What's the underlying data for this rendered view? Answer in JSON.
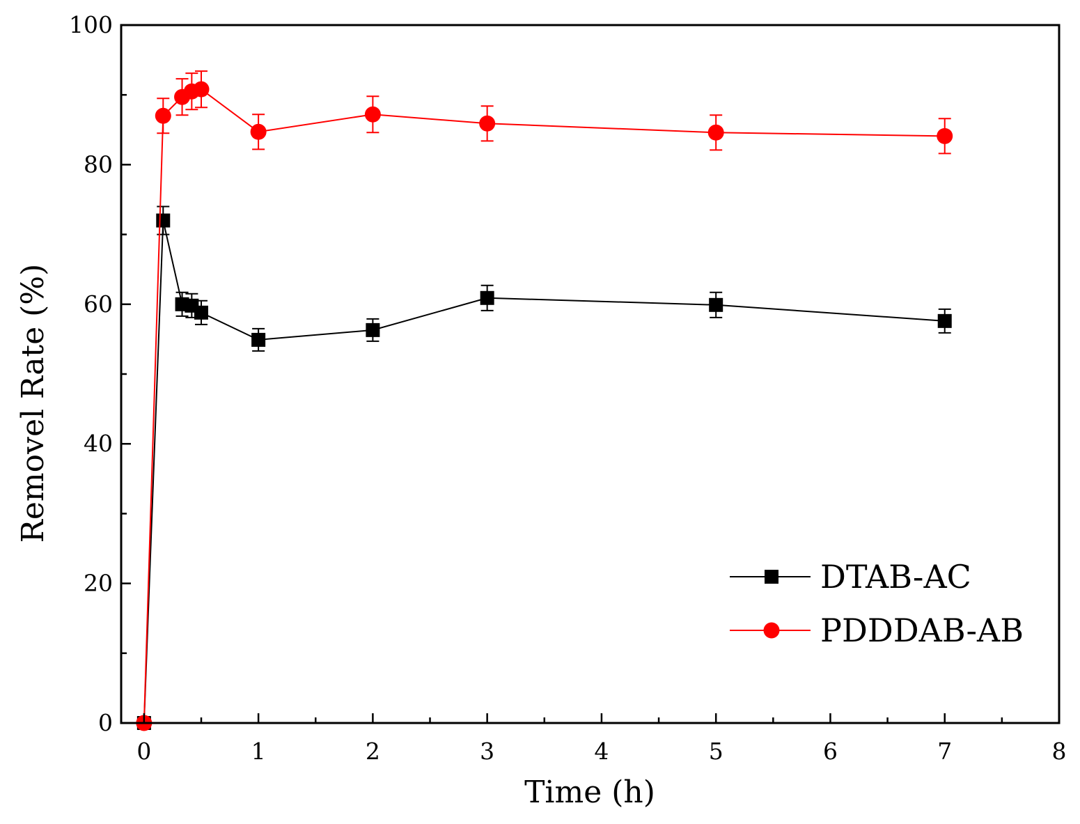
{
  "chart_data": {
    "type": "line",
    "title": "",
    "xlabel": "Time (h)",
    "ylabel": "Removel Rate (%)",
    "xlim": [
      -0.2,
      8
    ],
    "ylim": [
      0,
      100
    ],
    "xticks": [
      0,
      1,
      2,
      3,
      4,
      5,
      6,
      7,
      8
    ],
    "xtick_labels": [
      "0",
      "1",
      "2",
      "3",
      "4",
      "5",
      "6",
      "7",
      "8"
    ],
    "yticks": [
      0,
      20,
      40,
      60,
      80,
      100
    ],
    "ytick_labels": [
      "0",
      "20",
      "40",
      "60",
      "80",
      "100"
    ],
    "x_minor_step": 0.5,
    "y_minor_step": 10,
    "grid": false,
    "legend_position": "bottom-right",
    "series": [
      {
        "name": "DTAB-AC",
        "color": "#000000",
        "marker": "square",
        "x": [
          0,
          0.167,
          0.333,
          0.417,
          0.5,
          1,
          2,
          3,
          5,
          7
        ],
        "y": [
          0,
          72,
          60,
          59.8,
          58.8,
          54.9,
          56.3,
          60.9,
          59.9,
          57.6
        ],
        "yerr": [
          0,
          2,
          1.7,
          1.7,
          1.7,
          1.6,
          1.6,
          1.8,
          1.8,
          1.7
        ]
      },
      {
        "name": "PDDDAB-AB",
        "color": "#ff0000",
        "marker": "circle",
        "x": [
          0,
          0.167,
          0.333,
          0.417,
          0.5,
          1,
          2,
          3,
          5,
          7
        ],
        "y": [
          0,
          87,
          89.7,
          90.5,
          90.8,
          84.7,
          87.2,
          85.9,
          84.6,
          84.1
        ],
        "yerr": [
          0,
          2.5,
          2.6,
          2.6,
          2.6,
          2.5,
          2.6,
          2.5,
          2.5,
          2.5
        ]
      }
    ]
  }
}
